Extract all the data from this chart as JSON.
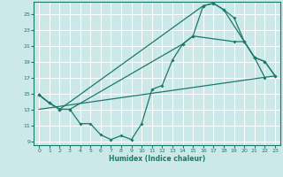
{
  "xlabel": "Humidex (Indice chaleur)",
  "xlim": [
    -0.5,
    23.5
  ],
  "ylim": [
    8.5,
    26.5
  ],
  "yticks": [
    9,
    11,
    13,
    15,
    17,
    19,
    21,
    23,
    25
  ],
  "xticks": [
    0,
    1,
    2,
    3,
    4,
    5,
    6,
    7,
    8,
    9,
    10,
    11,
    12,
    13,
    14,
    15,
    16,
    17,
    18,
    19,
    20,
    21,
    22,
    23
  ],
  "bg_color": "#cce8e8",
  "grid_color": "#ffffff",
  "line_color": "#1a7a6a",
  "line1_x": [
    0,
    1,
    2,
    3,
    4,
    5,
    6,
    7,
    8,
    9,
    10,
    11,
    12,
    13,
    14,
    15,
    16,
    17,
    18,
    19,
    20,
    21,
    22
  ],
  "line1_y": [
    14.8,
    13.8,
    13.0,
    13.0,
    11.2,
    11.2,
    9.8,
    9.2,
    9.7,
    9.2,
    11.2,
    15.5,
    16.0,
    19.2,
    21.2,
    22.2,
    26.0,
    26.3,
    25.5,
    24.5,
    21.5,
    19.5,
    17.0
  ],
  "line2_x": [
    0,
    1,
    2,
    16,
    17,
    18,
    20,
    21,
    22,
    23
  ],
  "line2_y": [
    14.8,
    13.8,
    13.0,
    26.0,
    26.3,
    25.5,
    21.5,
    19.5,
    19.0,
    17.2
  ],
  "line3_x": [
    0,
    23
  ],
  "line3_y": [
    13.0,
    17.2
  ],
  "line4_x": [
    0,
    1,
    2,
    3,
    14,
    15,
    19,
    20,
    21,
    22,
    23
  ],
  "line4_y": [
    14.8,
    13.8,
    13.0,
    13.0,
    21.2,
    22.2,
    21.5,
    21.5,
    19.5,
    19.0,
    17.2
  ]
}
